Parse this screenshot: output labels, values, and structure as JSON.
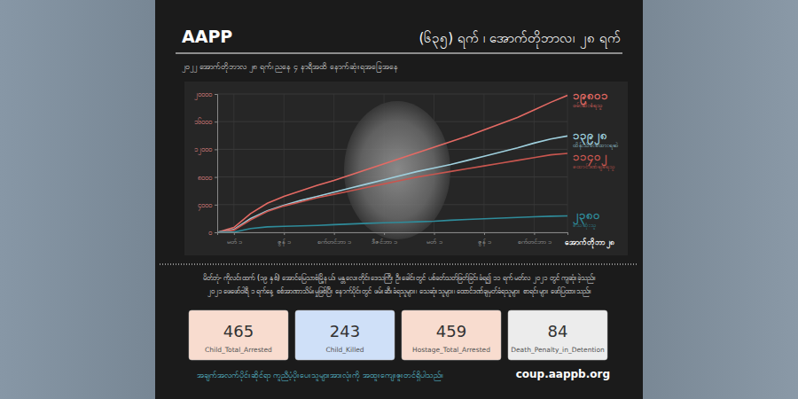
{
  "header": {
    "logo": "AAPP",
    "title": "(၆၃၅) ရက် ၊ အောက်တိုဘာလ၊ ၂၈ ရက်",
    "subtitle": "၂၀၂၂ အောက်တိုဘာလ ၂၈ ရက်၊ ညနေ ၄ နာရီအထိ နောက်ဆုံးရအခြေအနေ"
  },
  "chart_data": {
    "type": "line",
    "categories": [
      null,
      "မတ် ၁",
      null,
      null,
      "ဇွန် ၁",
      null,
      null,
      "စက်တင်ဘာ ၁",
      null,
      null,
      "ဒီဇင်ဘာ ၁",
      null,
      null,
      "မတ် ၁",
      null,
      null,
      "ဇွန် ၁",
      null,
      null,
      "စက်တင်ဘာ ၁",
      null,
      "အောက်တိုဘာ ၂၈"
    ],
    "series": [
      {
        "name": "ဖမ်းဆီးခံရသူ",
        "color": "#e46a64",
        "values": [
          0,
          700,
          2700,
          4200,
          5200,
          6000,
          6800,
          7500,
          8300,
          9100,
          9900,
          10700,
          11500,
          12300,
          13100,
          13900,
          14800,
          15700,
          16600,
          17700,
          18800,
          19801
        ],
        "value_labels": [
          null,
          null,
          null,
          null,
          null,
          null,
          null,
          null,
          null,
          null,
          null,
          null,
          null,
          null,
          null,
          null,
          null,
          null,
          null,
          null,
          null,
          "၁၉၈၀၁"
        ]
      },
      {
        "name": "ထိန်းသိမ်းခံထားရဆဲ",
        "color": "#9fd0de",
        "values": [
          0,
          400,
          2000,
          3100,
          3900,
          4600,
          5200,
          5800,
          6400,
          7000,
          7600,
          8200,
          8800,
          9300,
          9800,
          10400,
          11000,
          11600,
          12200,
          12900,
          13500,
          13928
        ],
        "value_labels": [
          null,
          null,
          null,
          null,
          null,
          null,
          null,
          null,
          null,
          null,
          null,
          null,
          null,
          null,
          null,
          null,
          null,
          null,
          null,
          null,
          null,
          "၁၃၉၂၈"
        ]
      },
      {
        "name": "ထောင်ဒဏ်ချခံရသူ",
        "color": "#c8564f",
        "values": [
          0,
          300,
          1800,
          3000,
          3800,
          4400,
          5000,
          5500,
          6000,
          6500,
          7000,
          7500,
          8000,
          8400,
          8800,
          9200,
          9600,
          10000,
          10400,
          10800,
          11200,
          11402
        ],
        "value_labels": [
          null,
          null,
          null,
          null,
          null,
          null,
          null,
          null,
          null,
          null,
          null,
          null,
          null,
          null,
          null,
          null,
          null,
          null,
          null,
          null,
          null,
          "၁၁၄၀၂"
        ]
      },
      {
        "name": "သေဆုံးသူ",
        "color": "#2f8c9b",
        "values": [
          0,
          30,
          540,
          780,
          870,
          930,
          1000,
          1100,
          1200,
          1300,
          1380,
          1450,
          1520,
          1600,
          1750,
          1850,
          1950,
          2050,
          2150,
          2250,
          2330,
          2380
        ],
        "value_labels": [
          null,
          null,
          null,
          null,
          null,
          null,
          null,
          null,
          null,
          null,
          null,
          null,
          null,
          null,
          null,
          null,
          null,
          null,
          null,
          null,
          null,
          "၂၃၈၀"
        ]
      }
    ],
    "ylim": [
      0,
      20000
    ],
    "yticks": [
      {
        "value": 0,
        "label": "၀"
      },
      {
        "value": 4000,
        "label": "၄၀၀၀"
      },
      {
        "value": 8000,
        "label": "၈၀၀၀"
      },
      {
        "value": 12000,
        "label": "၁၂၀၀၀"
      },
      {
        "value": 16000,
        "label": "၁၆၀၀၀"
      },
      {
        "value": 20000,
        "label": "၂၀၀၀၀"
      }
    ],
    "grid": true
  },
  "caption": [
    "မိတ်ဘုံ- ကိုလင်းထက် (၁၉ နှစ်) အောင်မြေသာစံမြို့နယ်၊ မန္တလေးတိုင်းဒေသကြီး ဦးခေါင်းတွင် ပစ်ခတ်သတ်ဖြတ်ခြင်းခံရ၍ ၁၁ ရက် မတ်လ ၂၀၂၁ တွင် ကျဆုံးခဲ့သည်။",
    "၂၀၂၁ ဖေဖော်ဝါရီ ၁ ရက်နေ့ စစ်အာဏာသိမ်းမှုဖြစ်ပြီး နောက်ပိုင်းတွင် ဖမ်းဆီးခံရသူများ၊ သေဆုံးသူများ၊ ထောင်ဒဏ်ချမှတ်ခံရသူများ စာရင်းများ ဖော်ပြထားသည်။"
  ],
  "stats": [
    {
      "value": 465,
      "label": "Child_Total_Arrested",
      "color": "#f8dccf"
    },
    {
      "value": 243,
      "label": "Child_Killed",
      "color": "#cfe0f8"
    },
    {
      "value": 459,
      "label": "Hostage_Total_Arrested",
      "color": "#f8dccf"
    },
    {
      "value": 84,
      "label": "Death_Penalty_in_Detention",
      "color": "#ececec"
    }
  ],
  "footer": {
    "note": "အချက်အလက်ပိုင်းဆိုင်ရာ ကူညီပံ့ပိုးပေးသူများအားလုံးကို အထူးကျေးဇူးတင်ရှိပါသည်။",
    "url": "coup.aappb.org"
  }
}
